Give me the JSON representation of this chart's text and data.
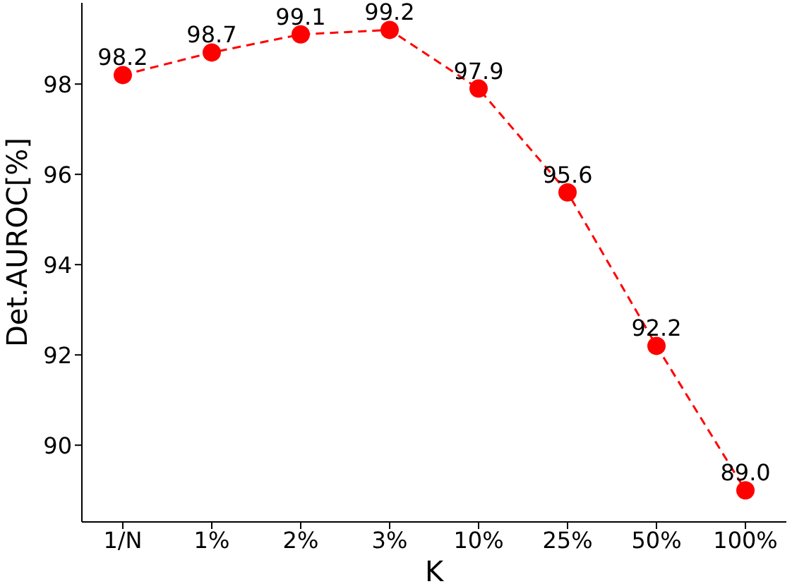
{
  "chart_data": {
    "type": "line",
    "xlabel": "K",
    "ylabel": "Det.AUROC[%]",
    "categories": [
      "1/N",
      "1%",
      "2%",
      "3%",
      "10%",
      "25%",
      "50%",
      "100%"
    ],
    "series": [
      {
        "color": "#ff0000",
        "values": [
          98.2,
          98.7,
          99.1,
          99.2,
          97.9,
          95.6,
          92.2,
          89.0
        ]
      }
    ],
    "ylim": [
      88.3,
      99.8
    ],
    "yticks": [
      90,
      92,
      94,
      96,
      98
    ],
    "value_labels": [
      "98.2",
      "98.7",
      "99.1",
      "99.2",
      "97.9",
      "95.6",
      "92.2",
      "89.0"
    ],
    "marker": "circle",
    "line_style": "dashed",
    "grid": false,
    "legend": false
  }
}
